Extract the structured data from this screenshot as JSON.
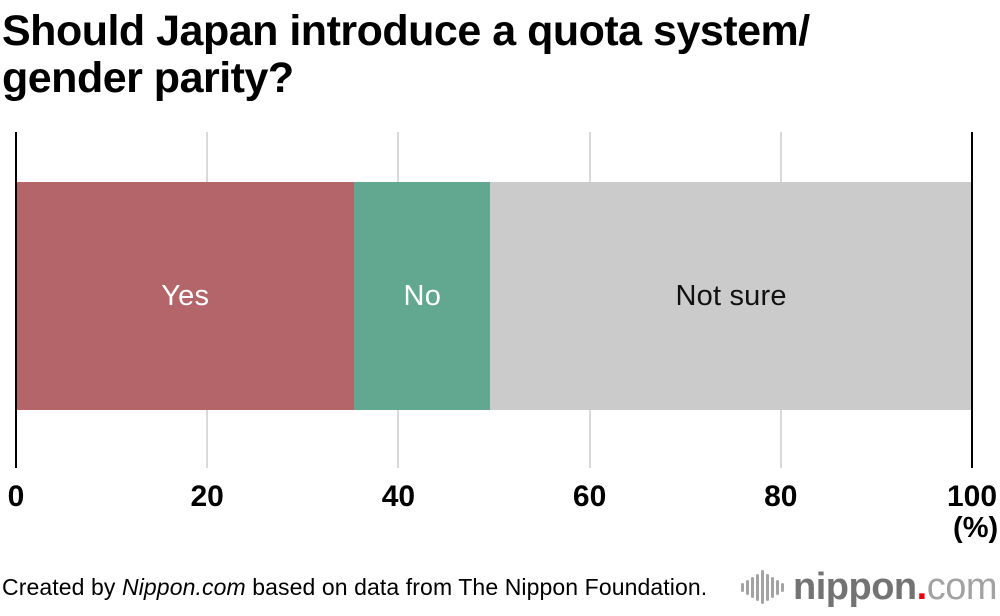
{
  "title": {
    "line1": "Should Japan introduce a quota system/",
    "line2": "gender parity?"
  },
  "chart_data": {
    "type": "bar",
    "orientation": "horizontal-stacked",
    "title": "Should Japan introduce a quota system/gender parity?",
    "categories": [
      "Yes",
      "No",
      "Not sure"
    ],
    "values": [
      35.4,
      14.2,
      50.4
    ],
    "colors": [
      "#b36569",
      "#62a78f",
      "#cbcbcb"
    ],
    "label_colors": [
      "#ffffff",
      "#ffffff",
      "#111111"
    ],
    "x_ticks": [
      0,
      20,
      40,
      60,
      80,
      100
    ],
    "xlim": [
      0,
      100
    ],
    "x_unit_label": "(%)",
    "grid": true,
    "legend": "none",
    "gridline_color": "#d9d9d9",
    "edge_line_color": "#000000"
  },
  "footer": {
    "credit_prefix": "Created by ",
    "credit_source": "Nippon.com",
    "credit_suffix": " based on data from The Nippon Foundation.",
    "logo": {
      "name": "nippon",
      "dot": ".",
      "tld": "com"
    }
  }
}
